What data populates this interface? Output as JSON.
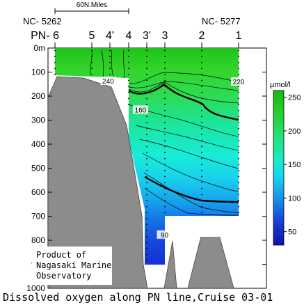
{
  "chart_data": {
    "type": "contour",
    "title": "Dissolved oxygen along PN line,Cruise 03-01",
    "ylim": [
      0,
      1000
    ],
    "y_ticks": [
      0,
      100,
      200,
      300,
      400,
      500,
      600,
      700,
      800,
      900,
      1000
    ],
    "y_tick_labels": [
      "0m",
      "100",
      "200",
      "300",
      "400",
      "500",
      "600",
      "700",
      "800",
      "900",
      "1000"
    ],
    "scale_label": "60N.Miles",
    "left_cast_label": "NC- 5262",
    "right_cast_label": "NC- 5277",
    "stations": [
      {
        "label": "PN- 6",
        "x_index": 0,
        "bottom_depth": 110
      },
      {
        "label": "5",
        "x_index": 1,
        "bottom_depth": 120
      },
      {
        "label": "4'",
        "x_index": 2,
        "bottom_depth": 120
      },
      {
        "label": "4",
        "x_index": 3,
        "bottom_depth": 250
      },
      {
        "label": "3'",
        "x_index": 4,
        "bottom_depth": 905
      },
      {
        "label": "3",
        "x_index": 5,
        "bottom_depth": 700
      },
      {
        "label": "2",
        "x_index": 6,
        "bottom_depth": 700
      },
      {
        "label": "1",
        "x_index": 7,
        "bottom_depth": 700
      }
    ],
    "contour_labels": [
      {
        "text": "240",
        "station_x": 1.9,
        "depth": 145
      },
      {
        "text": "220",
        "station_x": 7.4,
        "depth": 148
      },
      {
        "text": "160",
        "station_x": 3.65,
        "depth": 265
      },
      {
        "text": "90",
        "station_x": 4.98,
        "depth": 785
      }
    ],
    "colorbar": {
      "unit": "μmol/l",
      "range": [
        30,
        260
      ],
      "ticks": [
        50,
        100,
        150,
        200,
        250
      ],
      "tick_labels": [
        "50",
        "100",
        "150",
        "200",
        "250"
      ]
    },
    "annotation": [
      "Product of",
      "Nagasaki Marine",
      "Observatory"
    ],
    "colors": {
      "land": "#8c8c8c",
      "high_o2": "#22c41a",
      "mid_o2": "#18e8c8",
      "low_o2": "#1636d8"
    }
  }
}
